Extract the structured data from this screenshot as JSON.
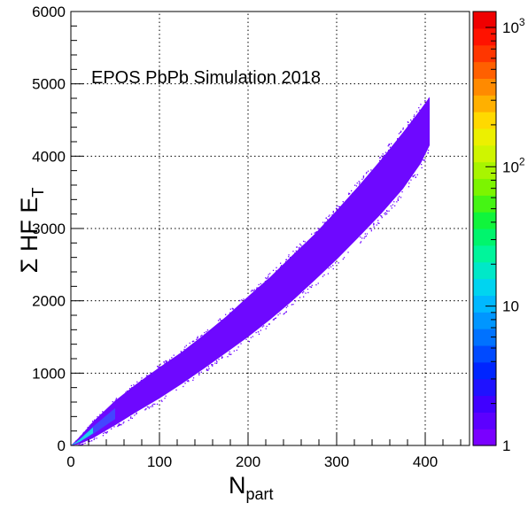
{
  "chart_data": {
    "type": "heatmap",
    "title": "EPOS PbPb Simulation 2018",
    "xlabel": {
      "main": "N",
      "sub": "part"
    },
    "ylabel": {
      "prefix": "Σ HF E",
      "sub": "T"
    },
    "xlim": [
      0,
      450
    ],
    "ylim": [
      0,
      6000
    ],
    "xticks": [
      0,
      100,
      200,
      300,
      400
    ],
    "yticks": [
      0,
      1000,
      2000,
      3000,
      4000,
      5000,
      6000
    ],
    "grid": true,
    "colorbar": {
      "scale": "log",
      "range": [
        1,
        1300
      ],
      "labels": [
        {
          "value": 1,
          "text": "1"
        },
        {
          "value": 10,
          "text": "10"
        },
        {
          "value": 100,
          "base": "10",
          "exp": "2"
        },
        {
          "value": 1000,
          "base": "10",
          "exp": "3"
        }
      ]
    },
    "band": {
      "description": "correlation band of Sum HF E_T vs N_part, density highest at low N_part",
      "points": [
        {
          "x": 0,
          "lo": 0,
          "hi": 0
        },
        {
          "x": 10,
          "lo": 20,
          "hi": 120
        },
        {
          "x": 25,
          "lo": 100,
          "hi": 330
        },
        {
          "x": 50,
          "lo": 280,
          "hi": 620
        },
        {
          "x": 75,
          "lo": 470,
          "hi": 860
        },
        {
          "x": 100,
          "lo": 650,
          "hi": 1080
        },
        {
          "x": 125,
          "lo": 850,
          "hi": 1290
        },
        {
          "x": 150,
          "lo": 1060,
          "hi": 1530
        },
        {
          "x": 175,
          "lo": 1280,
          "hi": 1780
        },
        {
          "x": 200,
          "lo": 1500,
          "hi": 2060
        },
        {
          "x": 225,
          "lo": 1740,
          "hi": 2330
        },
        {
          "x": 250,
          "lo": 2000,
          "hi": 2630
        },
        {
          "x": 275,
          "lo": 2280,
          "hi": 2920
        },
        {
          "x": 300,
          "lo": 2570,
          "hi": 3250
        },
        {
          "x": 325,
          "lo": 2880,
          "hi": 3590
        },
        {
          "x": 350,
          "lo": 3200,
          "hi": 3950
        },
        {
          "x": 375,
          "lo": 3550,
          "hi": 4330
        },
        {
          "x": 395,
          "lo": 3900,
          "hi": 4650
        },
        {
          "x": 405,
          "lo": 4150,
          "hi": 4820
        }
      ],
      "core_color": "#1fd2e6",
      "edge_color": "#6e08ff"
    }
  }
}
